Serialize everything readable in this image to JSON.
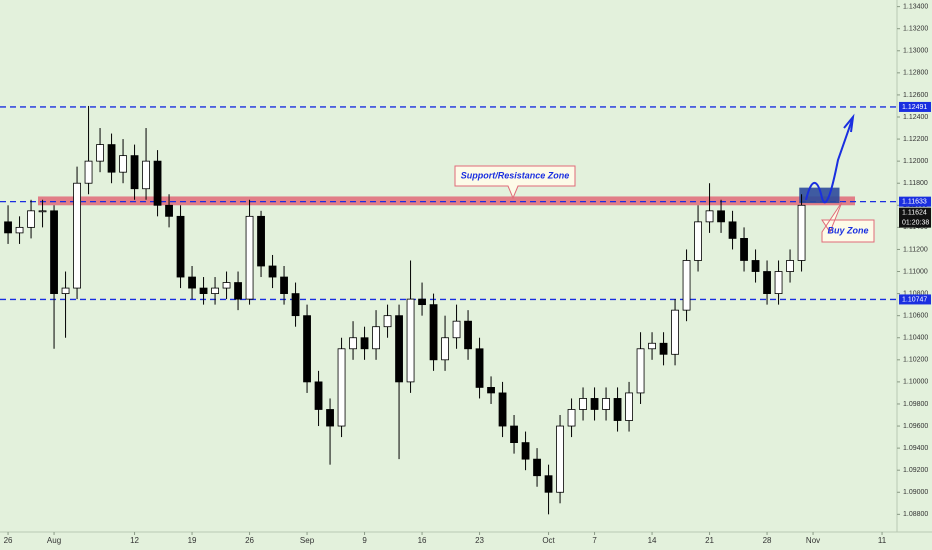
{
  "chart_data": {
    "type": "candlestick",
    "x": [
      0,
      1,
      2,
      3,
      4,
      5,
      6,
      7,
      8,
      9,
      10,
      11,
      12,
      13,
      14,
      15,
      16,
      17,
      18,
      19,
      20,
      21,
      22,
      23,
      24,
      25,
      26,
      27,
      28,
      29,
      30,
      31,
      32,
      33,
      34,
      35,
      36,
      37,
      38,
      39,
      40,
      41,
      42,
      43,
      44,
      45,
      46,
      47,
      48,
      49,
      50,
      51,
      52,
      53,
      54,
      55,
      56,
      57,
      58,
      59,
      60,
      61,
      62,
      63,
      64,
      65,
      66,
      67,
      68,
      69
    ],
    "series": [
      {
        "up_color": "#ffffff",
        "down_color": "#000000",
        "open": [
          1.1145,
          1.1135,
          1.114,
          1.1155,
          1.1155,
          1.108,
          1.1085,
          1.118,
          1.12,
          1.1215,
          1.119,
          1.1205,
          1.1175,
          1.12,
          1.116,
          1.115,
          1.1095,
          1.1085,
          1.108,
          1.1085,
          1.109,
          1.1075,
          1.115,
          1.1105,
          1.1095,
          1.108,
          1.106,
          1.1,
          1.0975,
          1.096,
          1.103,
          1.104,
          1.103,
          1.105,
          1.106,
          1.1,
          1.1075,
          1.107,
          1.102,
          1.104,
          1.1055,
          1.103,
          1.0995,
          1.099,
          1.096,
          1.0945,
          1.093,
          1.0915,
          1.09,
          1.096,
          1.0975,
          1.0985,
          1.0975,
          1.0985,
          1.0965,
          1.099,
          1.103,
          1.1035,
          1.1025,
          1.1065,
          1.111,
          1.1145,
          1.1155,
          1.1145,
          1.113,
          1.111,
          1.11,
          1.108,
          1.11,
          1.111
        ],
        "high": [
          1.116,
          1.115,
          1.1165,
          1.1165,
          1.116,
          1.11,
          1.1195,
          1.125,
          1.123,
          1.1225,
          1.122,
          1.1215,
          1.123,
          1.121,
          1.117,
          1.116,
          1.1105,
          1.1095,
          1.1095,
          1.11,
          1.11,
          1.1165,
          1.1155,
          1.1115,
          1.1105,
          1.109,
          1.107,
          1.101,
          1.0985,
          1.104,
          1.1055,
          1.105,
          1.1065,
          1.107,
          1.107,
          1.111,
          1.109,
          1.108,
          1.106,
          1.107,
          1.1065,
          1.104,
          1.1005,
          1.1,
          1.097,
          1.0955,
          1.094,
          1.0925,
          1.097,
          1.0985,
          1.0995,
          1.0995,
          1.0995,
          1.0995,
          1.1,
          1.1045,
          1.1045,
          1.1045,
          1.1075,
          1.112,
          1.116,
          1.118,
          1.1165,
          1.1155,
          1.114,
          1.112,
          1.111,
          1.111,
          1.112,
          1.117
        ],
        "low": [
          1.1125,
          1.1125,
          1.113,
          1.114,
          1.103,
          1.104,
          1.1075,
          1.117,
          1.119,
          1.118,
          1.118,
          1.1165,
          1.1165,
          1.115,
          1.114,
          1.1085,
          1.1075,
          1.107,
          1.107,
          1.1075,
          1.1065,
          1.107,
          1.1095,
          1.1085,
          1.107,
          1.105,
          1.099,
          1.096,
          1.0925,
          1.095,
          1.102,
          1.102,
          1.102,
          1.104,
          1.093,
          1.099,
          1.106,
          1.101,
          1.101,
          1.103,
          1.102,
          1.0985,
          1.098,
          1.095,
          1.0935,
          1.092,
          1.0905,
          1.088,
          1.089,
          1.095,
          1.0965,
          1.0965,
          1.0965,
          1.0955,
          1.0955,
          1.098,
          1.102,
          1.1015,
          1.1015,
          1.1055,
          1.11,
          1.1135,
          1.1135,
          1.112,
          1.11,
          1.109,
          1.107,
          1.107,
          1.109,
          1.11
        ],
        "close": [
          1.1135,
          1.114,
          1.1155,
          1.1155,
          1.108,
          1.1085,
          1.118,
          1.12,
          1.1215,
          1.119,
          1.1205,
          1.1175,
          1.12,
          1.116,
          1.115,
          1.1095,
          1.1085,
          1.108,
          1.1085,
          1.109,
          1.1075,
          1.115,
          1.1105,
          1.1095,
          1.108,
          1.106,
          1.1,
          1.0975,
          1.096,
          1.103,
          1.104,
          1.103,
          1.105,
          1.106,
          1.1,
          1.1075,
          1.107,
          1.102,
          1.104,
          1.1055,
          1.103,
          1.0995,
          1.099,
          1.096,
          1.0945,
          1.093,
          1.0915,
          1.09,
          1.096,
          1.0975,
          1.0985,
          1.0975,
          1.0985,
          1.0965,
          1.099,
          1.103,
          1.1035,
          1.1025,
          1.1065,
          1.111,
          1.1145,
          1.1155,
          1.1145,
          1.113,
          1.111,
          1.11,
          1.108,
          1.11,
          1.111,
          1.116
        ]
      }
    ],
    "xlim": [
      -0.7,
      77.3
    ],
    "ylim": [
      1.0864,
      1.1346
    ],
    "xticks": [
      {
        "value": 0,
        "label": "26"
      },
      {
        "value": 4,
        "label": "Aug"
      },
      {
        "value": 11,
        "label": "12"
      },
      {
        "value": 16,
        "label": "19"
      },
      {
        "value": 21,
        "label": "26"
      },
      {
        "value": 26,
        "label": "Sep"
      },
      {
        "value": 31,
        "label": "9"
      },
      {
        "value": 36,
        "label": "16"
      },
      {
        "value": 41,
        "label": "23"
      },
      {
        "value": 47,
        "label": "Oct"
      },
      {
        "value": 51,
        "label": "7"
      },
      {
        "value": 56,
        "label": "14"
      },
      {
        "value": 61,
        "label": "21"
      },
      {
        "value": 66,
        "label": "28"
      },
      {
        "value": 70,
        "label": "Nov"
      },
      {
        "value": 76,
        "label": "11"
      }
    ],
    "yticks": [
      {
        "value": 1.088,
        "label": "1.08800"
      },
      {
        "value": 1.09,
        "label": "1.09000"
      },
      {
        "value": 1.092,
        "label": "1.09200"
      },
      {
        "value": 1.094,
        "label": "1.09400"
      },
      {
        "value": 1.096,
        "label": "1.09600"
      },
      {
        "value": 1.098,
        "label": "1.09800"
      },
      {
        "value": 1.1,
        "label": "1.10000"
      },
      {
        "value": 1.102,
        "label": "1.10200"
      },
      {
        "value": 1.104,
        "label": "1.10400"
      },
      {
        "value": 1.106,
        "label": "1.10600"
      },
      {
        "value": 1.108,
        "label": "1.10800"
      },
      {
        "value": 1.11,
        "label": "1.11000"
      },
      {
        "value": 1.112,
        "label": "1.11200"
      },
      {
        "value": 1.114,
        "label": "1.11400"
      },
      {
        "value": 1.116,
        "label": "1.11600"
      },
      {
        "value": 1.118,
        "label": "1.11800"
      },
      {
        "value": 1.12,
        "label": "1.12000"
      },
      {
        "value": 1.122,
        "label": "1.12200"
      },
      {
        "value": 1.124,
        "label": "1.12400"
      },
      {
        "value": 1.126,
        "label": "1.12600"
      },
      {
        "value": 1.128,
        "label": "1.12800"
      },
      {
        "value": 1.13,
        "label": "1.13000"
      },
      {
        "value": 1.132,
        "label": "1.13200"
      },
      {
        "value": 1.134,
        "label": "1.13400"
      }
    ],
    "grid": false,
    "levels": [
      {
        "value": 1.12491,
        "color": "#1a2fe0"
      },
      {
        "value": 1.11633,
        "color": "#1a2fe0"
      },
      {
        "value": 1.10747,
        "color": "#1a2fe0"
      }
    ],
    "last_price": 1.11624,
    "countdown": "01:20:38",
    "zone": [
      1.116,
      1.1168
    ],
    "zone_color": "#e06a78",
    "buy_zone": {
      "x": [
        68.8,
        72.3
      ],
      "y": [
        1.1162,
        1.1176
      ],
      "color": "#2c4a9a"
    },
    "annotations": [
      {
        "text": "Support/Resistance Zone"
      },
      {
        "text": "Buy Zone"
      }
    ]
  }
}
